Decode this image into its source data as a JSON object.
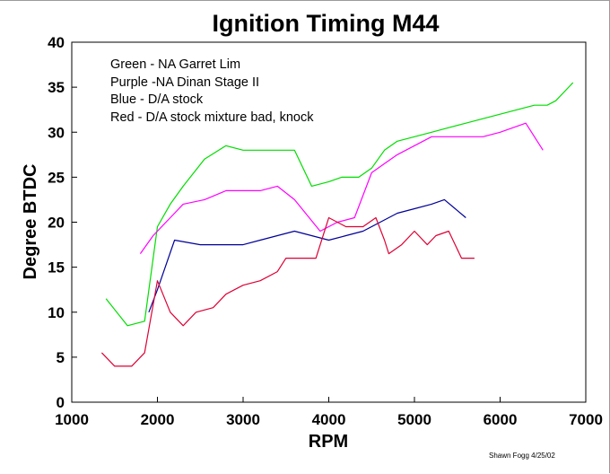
{
  "chart_data": {
    "type": "line",
    "title": "Ignition Timing M44",
    "xlabel": "RPM",
    "ylabel": "Degree BTDC",
    "xlim": [
      1000,
      7000
    ],
    "ylim": [
      0,
      40
    ],
    "xticks": [
      1000,
      2000,
      3000,
      4000,
      5000,
      6000,
      7000
    ],
    "yticks": [
      0,
      5,
      10,
      15,
      20,
      25,
      30,
      35,
      40
    ],
    "grid": false,
    "legend_position": "top-left",
    "legend": [
      "Green - NA Garret Lim",
      "Purple -NA Dinan Stage II",
      "Blue - D/A stock",
      "Red - D/A stock mixture bad, knock"
    ],
    "credit": "Shawn Fogg 4/25/02",
    "series": [
      {
        "color": "#00dd00",
        "x": [
          1400,
          1650,
          1850,
          2000,
          2150,
          2300,
          2550,
          2800,
          3000,
          3200,
          3400,
          3600,
          3800,
          4000,
          4150,
          4350,
          4500,
          4650,
          4800,
          5000,
          5200,
          5400,
          5600,
          5800,
          6000,
          6200,
          6400,
          6550,
          6650,
          6850
        ],
        "y": [
          11.5,
          8.5,
          9,
          19.5,
          22,
          24,
          27,
          28.5,
          28,
          28,
          28,
          28,
          24,
          24.5,
          25,
          25,
          26,
          28,
          29,
          29.5,
          30,
          30.5,
          31,
          31.5,
          32,
          32.5,
          33,
          33,
          33.5,
          35.5
        ]
      },
      {
        "color": "#ff00ff",
        "x": [
          1800,
          1950,
          2150,
          2300,
          2550,
          2800,
          3000,
          3200,
          3400,
          3600,
          3900,
          4100,
          4300,
          4500,
          4650,
          4800,
          5000,
          5200,
          5400,
          5600,
          5800,
          6000,
          6300,
          6500
        ],
        "y": [
          16.5,
          18.5,
          20.5,
          22,
          22.5,
          23.5,
          23.5,
          23.5,
          24,
          22.5,
          19,
          20,
          20.5,
          25.5,
          26.5,
          27.5,
          28.5,
          29.5,
          29.5,
          29.5,
          29.5,
          30,
          31,
          28
        ]
      },
      {
        "color": "#000099",
        "x": [
          1900,
          2000,
          2200,
          2500,
          2800,
          3000,
          3200,
          3400,
          3600,
          3800,
          4000,
          4200,
          4400,
          4600,
          4800,
          5000,
          5200,
          5350,
          5600
        ],
        "y": [
          10,
          12.5,
          18,
          17.5,
          17.5,
          17.5,
          18,
          18.5,
          19,
          18.5,
          18,
          18.5,
          19,
          20,
          21,
          21.5,
          22,
          22.5,
          20.5
        ]
      },
      {
        "color": "#dd0033",
        "x": [
          1350,
          1500,
          1700,
          1850,
          2000,
          2150,
          2300,
          2450,
          2650,
          2800,
          3000,
          3200,
          3400,
          3500,
          3700,
          3850,
          4000,
          4200,
          4400,
          4550,
          4650,
          4700,
          4850,
          5000,
          5150,
          5250,
          5400,
          5550,
          5700
        ],
        "y": [
          5.5,
          4,
          4,
          5.5,
          13.5,
          10,
          8.5,
          10,
          10.5,
          12,
          13,
          13.5,
          14.5,
          16,
          16,
          16,
          20.5,
          19.5,
          19.5,
          20.5,
          18,
          16.5,
          17.5,
          19,
          17.5,
          18.5,
          19,
          16,
          16
        ]
      }
    ]
  }
}
